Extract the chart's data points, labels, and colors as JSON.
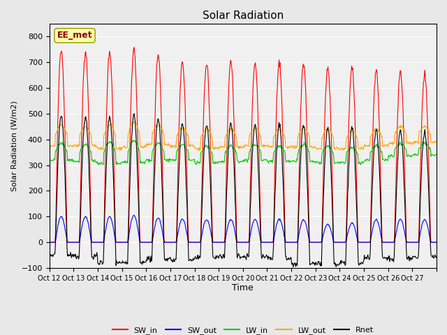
{
  "title": "Solar Radiation",
  "ylabel": "Solar Radiation (W/m2)",
  "xlabel": "Time",
  "ylim": [
    -100,
    850
  ],
  "yticks": [
    -100,
    0,
    100,
    200,
    300,
    400,
    500,
    600,
    700,
    800
  ],
  "x_tick_positions": [
    0,
    1,
    2,
    3,
    4,
    5,
    6,
    7,
    8,
    9,
    10,
    11,
    12,
    13,
    14,
    15,
    16
  ],
  "x_tick_labels": [
    "Oct 12",
    "Oct 13",
    "Oct 14",
    "Oct 15",
    "Oct 16",
    "Oct 17",
    "Oct 18",
    "Oct 19",
    "Oct 20",
    "Oct 21",
    "Oct 22",
    "Oct 23",
    "Oct 24",
    "Oct 25",
    "Oct 26",
    "Oct 27",
    ""
  ],
  "colors": {
    "SW_in": "#ff0000",
    "SW_out": "#0000ff",
    "LW_in": "#00cc00",
    "LW_out": "#ffa500",
    "Rnet": "#000000"
  },
  "legend_label": "EE_met",
  "legend_label_color": "#8b0000",
  "legend_box_color": "#ffffaa",
  "bg_color": "#e8e8e8",
  "plot_bg_color": "#f0f0f0",
  "n_days": 16,
  "hours_per_day": 24,
  "dt_hours": 0.5,
  "SW_in_peaks": [
    750,
    745,
    740,
    755,
    730,
    700,
    695,
    700,
    695,
    700,
    695,
    680,
    685,
    670,
    660,
    655
  ],
  "SW_out_peaks": [
    100,
    100,
    100,
    105,
    95,
    90,
    88,
    88,
    88,
    90,
    87,
    70,
    75,
    88,
    88,
    88
  ],
  "LW_in_base": [
    320,
    315,
    305,
    310,
    320,
    320,
    310,
    315,
    320,
    315,
    315,
    310,
    310,
    320,
    335,
    340
  ],
  "LW_in_day": [
    385,
    380,
    390,
    395,
    385,
    380,
    375,
    375,
    380,
    375,
    380,
    375,
    370,
    375,
    385,
    385
  ],
  "LW_out_base": [
    375,
    375,
    365,
    370,
    380,
    375,
    365,
    370,
    375,
    370,
    370,
    365,
    365,
    375,
    385,
    390
  ],
  "LW_out_day": [
    455,
    450,
    460,
    465,
    455,
    445,
    440,
    440,
    445,
    440,
    445,
    440,
    435,
    440,
    450,
    450
  ],
  "Rnet_night": [
    -50,
    -55,
    -80,
    -80,
    -65,
    -70,
    -60,
    -55,
    -55,
    -60,
    -85,
    -85,
    -80,
    -60,
    -65,
    -55
  ]
}
